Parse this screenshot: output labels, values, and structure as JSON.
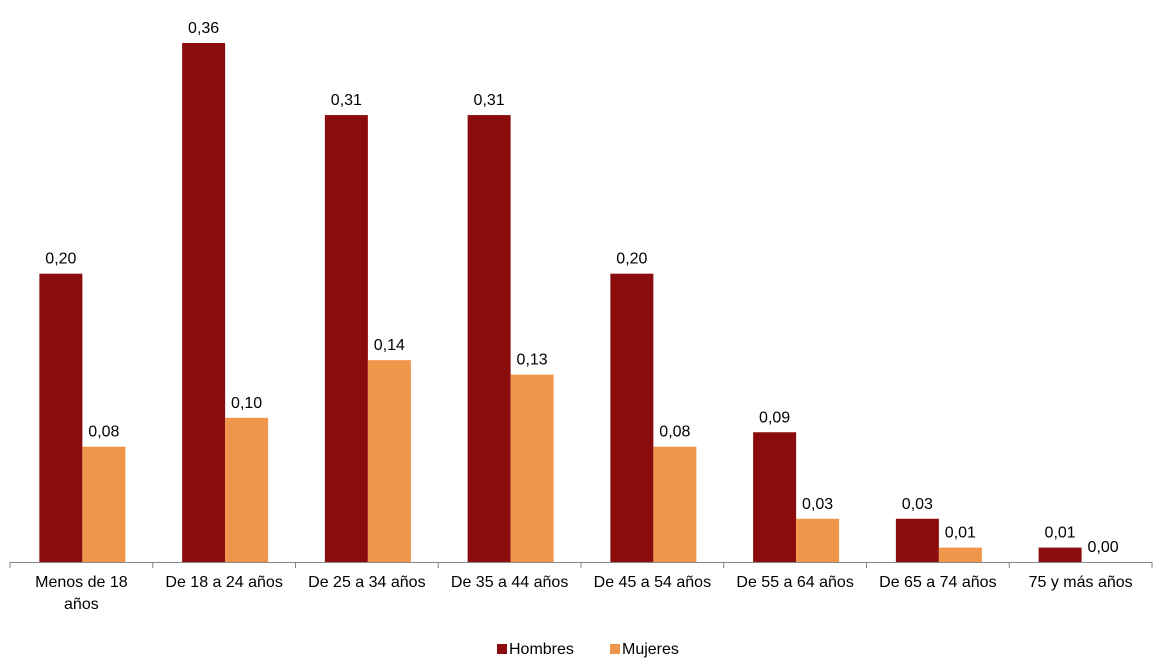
{
  "chart_data": {
    "type": "bar",
    "title": "",
    "xlabel": "",
    "ylabel": "",
    "ylim": [
      0,
      0.4
    ],
    "grid": false,
    "legend": "bottom",
    "categories": [
      [
        "Menos de 18",
        "años"
      ],
      [
        "De 18 a 24 años"
      ],
      [
        "De 25 a 34 años"
      ],
      [
        "De 35 a 44 años"
      ],
      [
        "De 45 a 54 años"
      ],
      [
        "De 55 a 64 años"
      ],
      [
        "De 65 a 74 años"
      ],
      [
        "75 y más años"
      ]
    ],
    "series": [
      {
        "name": "Hombres",
        "color": "#8b0c0c",
        "values": [
          0.2,
          0.36,
          0.31,
          0.31,
          0.2,
          0.09,
          0.03,
          0.01
        ],
        "labels": [
          "0,20",
          "0,36",
          "0,31",
          "0,31",
          "0,20",
          "0,09",
          "0,03",
          "0,01"
        ]
      },
      {
        "name": "Mujeres",
        "color": "#f0964a",
        "values": [
          0.08,
          0.1,
          0.14,
          0.13,
          0.08,
          0.03,
          0.01,
          0.0
        ],
        "labels": [
          "0,08",
          "0,10",
          "0,14",
          "0,13",
          "0,08",
          "0,03",
          "0,01",
          "0,00"
        ]
      }
    ]
  }
}
